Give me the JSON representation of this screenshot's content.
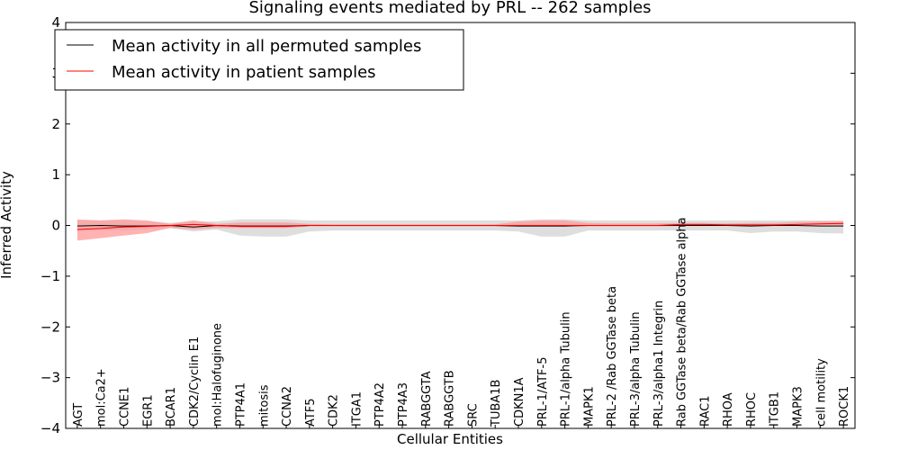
{
  "chart_data": {
    "type": "line",
    "title": "Signaling events mediated by PRL -- 262 samples",
    "xlabel": "Cellular Entities",
    "ylabel": "Inferred Activity",
    "ylim": [
      -4,
      4
    ],
    "yticks": [
      -4,
      -3,
      -2,
      -1,
      0,
      1,
      2,
      3,
      4
    ],
    "ytick_labels": [
      "−4",
      "−3",
      "−2",
      "−1",
      "0",
      "1",
      "2",
      "3",
      "4"
    ],
    "grid": false,
    "legend_position": "top-left",
    "categories": [
      "AGT",
      "mol:Ca2+",
      "CCNE1",
      "EGR1",
      "BCAR1",
      "CDK2/Cyclin E1",
      "mol:Halofuginone",
      "PTP4A1",
      "mitosis",
      "CCNA2",
      "ATF5",
      "CDK2",
      "ITGA1",
      "PTP4A2",
      "PTP4A3",
      "RABGGTA",
      "RABGGTB",
      "SRC",
      "TUBA1B",
      "CDKN1A",
      "PRL-1/ATF-5",
      "PRL-1/alpha Tubulin",
      "MAPK1",
      "PRL-2 /Rab GGTase beta",
      "PRL-3/alpha Tubulin",
      "PRL-3/alpha1 Integrin",
      "Rab GGTase beta/Rab GGTase alpha",
      "RAC1",
      "RHOA",
      "RHOC",
      "ITGB1",
      "MAPK3",
      "cell motility",
      "ROCK1"
    ],
    "series": [
      {
        "name": "Mean activity in all permuted samples",
        "color": "#000000",
        "values": [
          -0.01,
          0.0,
          -0.01,
          -0.01,
          0.0,
          -0.03,
          0.0,
          -0.01,
          -0.01,
          -0.01,
          0.0,
          0.0,
          0.0,
          0.0,
          0.0,
          0.0,
          0.0,
          0.0,
          0.0,
          -0.01,
          -0.01,
          -0.01,
          0.0,
          0.0,
          0.0,
          0.0,
          0.0,
          0.0,
          0.0,
          -0.01,
          0.0,
          0.0,
          -0.01,
          -0.01
        ],
        "band_lower": [
          -0.12,
          -0.1,
          -0.1,
          -0.08,
          -0.05,
          -0.12,
          -0.08,
          -0.2,
          -0.22,
          -0.22,
          -0.12,
          -0.1,
          -0.1,
          -0.1,
          -0.1,
          -0.1,
          -0.1,
          -0.1,
          -0.1,
          -0.12,
          -0.22,
          -0.22,
          -0.1,
          -0.1,
          -0.1,
          -0.1,
          -0.1,
          -0.1,
          -0.1,
          -0.15,
          -0.12,
          -0.12,
          -0.15,
          -0.16
        ],
        "band_upper": [
          0.1,
          0.1,
          0.1,
          0.08,
          0.05,
          0.08,
          0.08,
          0.12,
          0.12,
          0.12,
          0.1,
          0.1,
          0.1,
          0.1,
          0.1,
          0.1,
          0.1,
          0.1,
          0.1,
          0.1,
          0.12,
          0.12,
          0.1,
          0.1,
          0.1,
          0.1,
          0.1,
          0.1,
          0.1,
          0.1,
          0.1,
          0.1,
          0.1,
          0.1
        ],
        "band_color": "#c8c8c8"
      },
      {
        "name": "Mean activity in patient samples",
        "color": "#ff0000",
        "values": [
          -0.08,
          -0.06,
          -0.03,
          -0.02,
          0.0,
          0.02,
          0.0,
          -0.02,
          -0.02,
          -0.02,
          0.0,
          0.0,
          0.0,
          0.0,
          0.0,
          0.0,
          0.0,
          0.0,
          0.0,
          0.0,
          0.0,
          0.0,
          0.0,
          0.0,
          0.0,
          0.0,
          0.02,
          0.02,
          0.01,
          0.01,
          0.01,
          0.02,
          0.03,
          0.04
        ],
        "band_lower": [
          -0.3,
          -0.25,
          -0.2,
          -0.15,
          -0.05,
          -0.08,
          -0.05,
          -0.05,
          -0.05,
          -0.05,
          -0.02,
          -0.02,
          -0.02,
          -0.02,
          -0.02,
          -0.02,
          -0.02,
          -0.02,
          -0.02,
          -0.02,
          -0.02,
          -0.02,
          -0.02,
          -0.02,
          -0.02,
          -0.02,
          -0.01,
          -0.01,
          -0.01,
          -0.01,
          -0.01,
          -0.01,
          0.0,
          0.0
        ],
        "band_upper": [
          0.12,
          0.1,
          0.12,
          0.1,
          0.03,
          0.1,
          0.03,
          0.06,
          0.06,
          0.06,
          0.03,
          0.02,
          0.02,
          0.02,
          0.02,
          0.02,
          0.02,
          0.02,
          0.02,
          0.08,
          0.1,
          0.1,
          0.05,
          0.04,
          0.04,
          0.04,
          0.05,
          0.05,
          0.04,
          0.05,
          0.05,
          0.07,
          0.08,
          0.08
        ],
        "band_color": "#ff9a9a"
      }
    ]
  }
}
